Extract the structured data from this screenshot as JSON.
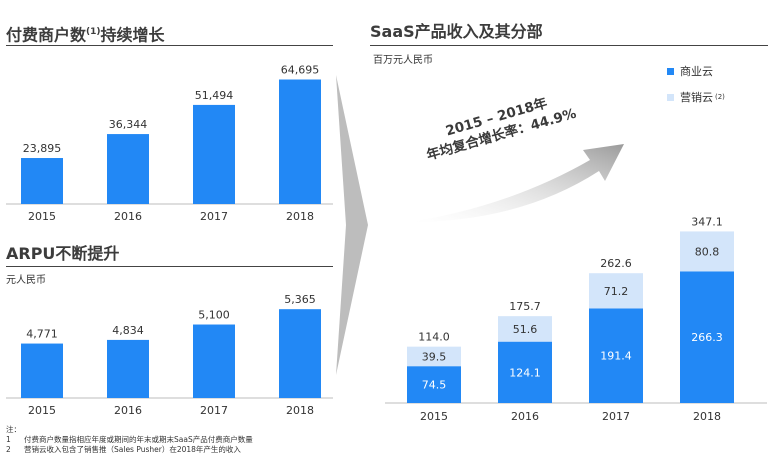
{
  "panels": {
    "merchants": {
      "title": "付费商户数",
      "title_sup": "(1)",
      "title_suffix": "持续增长"
    },
    "arpu": {
      "title": "ARPU不断提升",
      "unit": "元人民币"
    },
    "saas": {
      "title": "SaaS产品收入及其分部",
      "unit": "百万元人民币",
      "cagr_line1": "2015 – 2018年",
      "cagr_line2": "年均复合增长率：44.9%"
    }
  },
  "legend": {
    "commerce": {
      "label": "商业云",
      "color": "#2288f5"
    },
    "marketing": {
      "label": "营销云",
      "sup": "(2)",
      "color": "#d3e5fa"
    }
  },
  "footnotes": {
    "heading": "注：",
    "items": [
      {
        "num": "1",
        "text": "付费商户数量指相应年度或期间的年末或期末SaaS产品付费商户数量"
      },
      {
        "num": "2",
        "text": "营销云收入包含了销售推（Sales Pusher）在2018年产生的收入"
      }
    ]
  },
  "chart_data": [
    {
      "type": "bar",
      "title": "付费商户数(1)持续增长",
      "categories": [
        "2015",
        "2016",
        "2017",
        "2018"
      ],
      "values": [
        23895,
        36344,
        51494,
        64695
      ],
      "value_labels": [
        "23,895",
        "36,344",
        "51,494",
        "64,695"
      ],
      "ylim": [
        0,
        66000
      ],
      "color": "#2288f5",
      "grid": false
    },
    {
      "type": "bar",
      "title": "ARPU不断提升",
      "ylabel": "元人民币",
      "categories": [
        "2015",
        "2016",
        "2017",
        "2018"
      ],
      "values": [
        4771,
        4834,
        5100,
        5365
      ],
      "value_labels": [
        "4,771",
        "4,834",
        "5,100",
        "5,365"
      ],
      "ylim": [
        3830,
        5420
      ],
      "color": "#2288f5",
      "grid": false
    },
    {
      "type": "bar",
      "stacked": true,
      "title": "SaaS产品收入及其分部",
      "ylabel": "百万元人民币",
      "categories": [
        "2015",
        "2016",
        "2017",
        "2018"
      ],
      "series": [
        {
          "name": "商业云",
          "values": [
            74.5,
            124.1,
            191.4,
            266.3
          ],
          "labels": [
            "74.5",
            "124.1",
            "191.4",
            "266.3"
          ],
          "color": "#2288f5"
        },
        {
          "name": "营销云",
          "values": [
            39.5,
            51.6,
            71.2,
            80.8
          ],
          "labels": [
            "39.5",
            "51.6",
            "71.2",
            "80.8"
          ],
          "color": "#d3e5fa"
        }
      ],
      "totals": [
        114.0,
        175.7,
        262.6,
        347.1
      ],
      "total_labels": [
        "114.0",
        "175.7",
        "262.6",
        "347.1"
      ],
      "ylim": [
        0,
        350
      ],
      "legend": "top-right",
      "grid": false
    }
  ]
}
